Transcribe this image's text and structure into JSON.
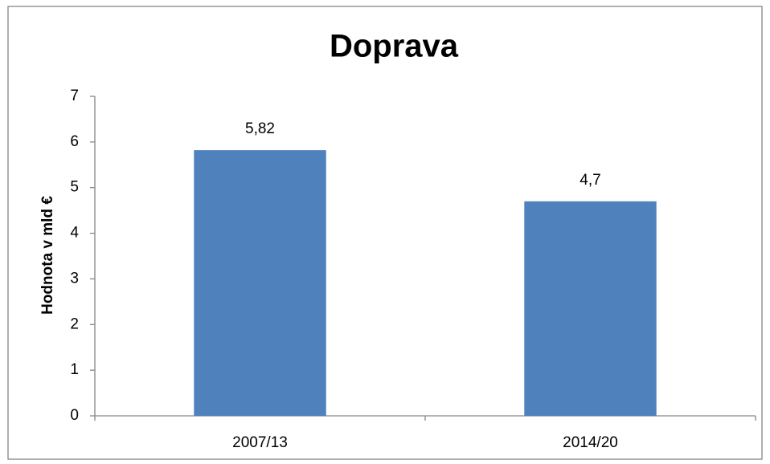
{
  "chart_data": {
    "type": "bar",
    "title": "Doprava",
    "y_label": "Hodnota v mld €",
    "categories": [
      "2007/13",
      "2014/20"
    ],
    "values": [
      5.82,
      4.7
    ],
    "value_labels": [
      "5,82",
      "4,7"
    ],
    "color": "#4f81bd",
    "ylim": [
      0,
      7
    ],
    "yticks": [
      0,
      1,
      2,
      3,
      4,
      5,
      6,
      7
    ],
    "grid": false
  }
}
